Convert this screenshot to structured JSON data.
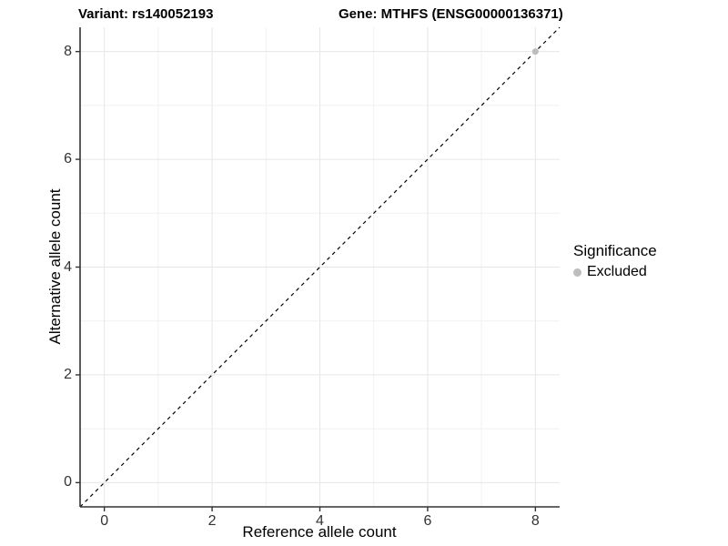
{
  "chart_data": {
    "type": "scatter",
    "titles": {
      "left": "Variant: rs140052193",
      "right": "Gene: MTHFS (ENSG00000136371)"
    },
    "xlabel": "Reference allele count",
    "ylabel": "Alternative allele count",
    "xlim": [
      -0.45,
      8.45
    ],
    "ylim": [
      -0.45,
      8.45
    ],
    "xticks": [
      0,
      2,
      4,
      6,
      8
    ],
    "yticks": [
      0,
      2,
      4,
      6,
      8
    ],
    "grid": {
      "lines_every": 1,
      "major_every": 2,
      "major_color": "#e6e6e6",
      "minor_color": "#f1f1f1",
      "background": "#ffffff"
    },
    "axis_line_color": "#333333",
    "identity_line": {
      "slope": 1,
      "intercept": 0,
      "style": "dashed",
      "color": "#000000"
    },
    "series": [
      {
        "name": "Excluded",
        "color": "#bdbdbd",
        "points": [
          [
            8,
            8
          ]
        ]
      }
    ],
    "legend": {
      "title": "Significance",
      "position": "right",
      "entries": [
        {
          "label": "Excluded",
          "color": "#bdbdbd",
          "marker": "circle"
        }
      ]
    }
  }
}
